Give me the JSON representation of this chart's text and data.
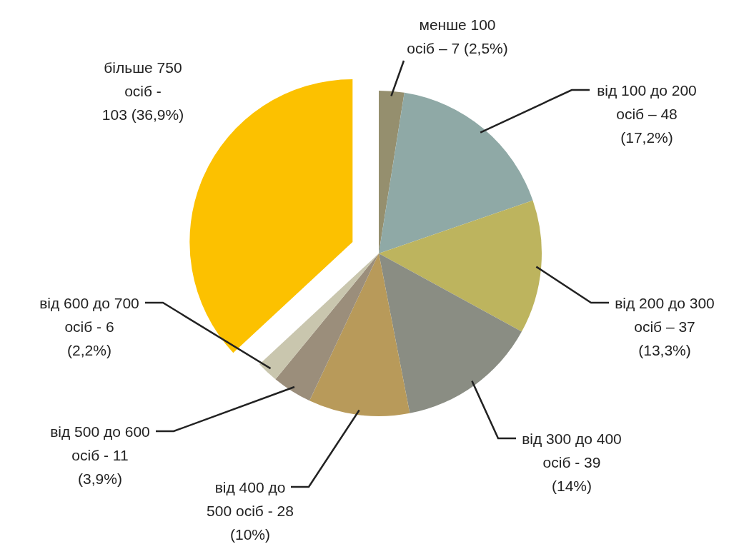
{
  "chart_data": {
    "type": "pie",
    "categories": [
      "менше 100\nосіб – 7 (2,5%)",
      "від 100 до 200\nосіб – 48\n(17,2%)",
      "від 200 до 300\nосіб – 37\n(13,3%)",
      "від 300 до 400\nосіб - 39\n(14%)",
      "від 400 до\n500 осіб - 28\n(10%)",
      "від 500 до 600\nосіб - 11\n(3,9%)",
      "від 600 до 700\nосіб - 6\n(2,2%)",
      "більше 750\nосіб -\n103 (36,9%)"
    ],
    "values": [
      7,
      48,
      37,
      39,
      28,
      11,
      6,
      103
    ],
    "colors": [
      "#958f6e",
      "#8fa9a6",
      "#bdb45e",
      "#8a8d83",
      "#b89a5a",
      "#9b8e7b",
      "#c9c6ae",
      "#fcc100"
    ]
  }
}
